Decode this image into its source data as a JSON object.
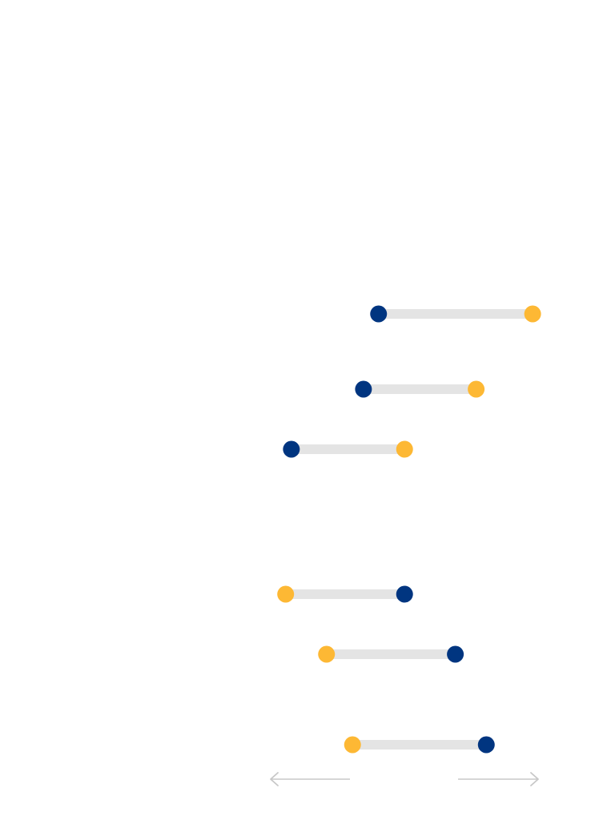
{
  "chart_data": {
    "type": "dumbbell",
    "title": "",
    "xlabel": "",
    "ylabel": "",
    "xlim": [
      0,
      100
    ],
    "grid": false,
    "legend": "none",
    "colors": {
      "start": "#003580",
      "end": "#FDB834",
      "track": "#E4E4E4",
      "arrow": "#C8C8C8"
    },
    "x_axis_arrows": {
      "left": "arrow-left-icon",
      "right": "arrow-right-icon"
    },
    "rows": [
      {
        "start": 39.3,
        "end": 98.5
      },
      {
        "start": 33.5,
        "end": 76.8
      },
      {
        "start": 5.8,
        "end": 49.3
      },
      {
        "start": 49.3,
        "end": 3.6
      },
      {
        "start": 68.8,
        "end": 19.3
      },
      {
        "start": 80.7,
        "end": 29.3
      }
    ]
  }
}
